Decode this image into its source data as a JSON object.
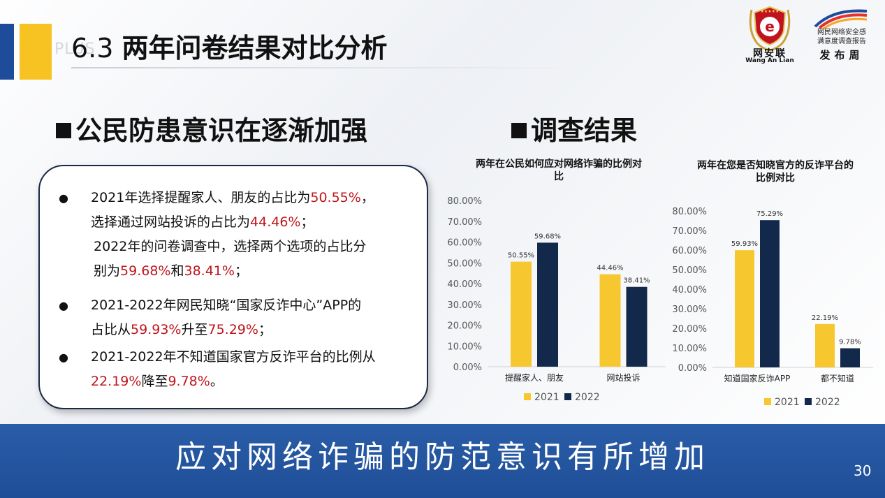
{
  "header": {
    "number": "6.3",
    "title": "两年问卷结果对比分析",
    "deco": "PLUS"
  },
  "logos": {
    "wal_name": "网安联",
    "wal_sub": "Wang An Lian",
    "week_line1": "网民网络安全感",
    "week_line2": "满意度调查报告",
    "week_big": "发布周"
  },
  "left": {
    "heading": "公民防患意识在逐渐加强",
    "bullets": [
      {
        "l1a": "2021年选择提醒家人、朋友的占比为",
        "l1b": "50.55%",
        "l1c": "，",
        "l2a": "选择通过网站投诉的占比为",
        "l2b": "44.46%",
        "l2c": "；",
        "l3": "2022年的问卷调查中，选择两个选项的占比分",
        "l4a": "别为",
        "l4b": "59.68%",
        "l4c": "和",
        "l4d": "38.41%",
        "l4e": "；"
      },
      {
        "l1": "2021-2022年网民知晓“国家反诈中心”APP的",
        "l2a": "占比从",
        "l2b": "59.93%",
        "l2c": "升至",
        "l2d": "75.29%",
        "l2e": "；"
      },
      {
        "l1": "2021-2022年不知道国家官方反诈平台的比例从",
        "l2a": "22.19%",
        "l2b": "降至",
        "l2c": "9.78%",
        "l2d": "。"
      }
    ]
  },
  "right": {
    "heading": "调查结果"
  },
  "chart_data": [
    {
      "type": "bar",
      "title": "两年在公民如何应对网络诈骗的比例对比",
      "title_line1": "两年在公民如何应对网络诈骗的比例对",
      "title_line2": "比",
      "categories": [
        "提醒家人、朋友",
        "网站投诉"
      ],
      "series": [
        {
          "name": "2021",
          "values": [
            50.55,
            44.46
          ],
          "labels": [
            "50.55%",
            "44.46%"
          ],
          "color": "#f7c72f"
        },
        {
          "name": "2022",
          "values": [
            59.68,
            38.41
          ],
          "labels": [
            "59.68%",
            "38.41%"
          ],
          "color": "#13294b"
        }
      ],
      "ylim": [
        0,
        80
      ],
      "yticks": [
        "0.00%",
        "10.00%",
        "20.00%",
        "30.00%",
        "40.00%",
        "50.00%",
        "60.00%",
        "70.00%",
        "80.00%"
      ],
      "legend": "bottom"
    },
    {
      "type": "bar",
      "title": "两年在您是否知晓官方的反诈平台的比例对比",
      "title_line1": "两年在您是否知晓官方的反诈平台的",
      "title_line2": "比例对比",
      "categories": [
        "知道国家反诈APP",
        "都不知道"
      ],
      "series": [
        {
          "name": "2021",
          "values": [
            59.93,
            22.19
          ],
          "labels": [
            "59.93%",
            "22.19%"
          ],
          "color": "#f7c72f"
        },
        {
          "name": "2022",
          "values": [
            75.29,
            9.78
          ],
          "labels": [
            "75.29%",
            "9.78%"
          ],
          "color": "#13294b"
        }
      ],
      "ylim": [
        0,
        80
      ],
      "yticks": [
        "0.00%",
        "10.00%",
        "20.00%",
        "30.00%",
        "40.00%",
        "50.00%",
        "60.00%",
        "70.00%",
        "80.00%"
      ],
      "legend": "bottom"
    }
  ],
  "footer": {
    "text": "应对网络诈骗的防范意识有所增加",
    "page": "30"
  }
}
